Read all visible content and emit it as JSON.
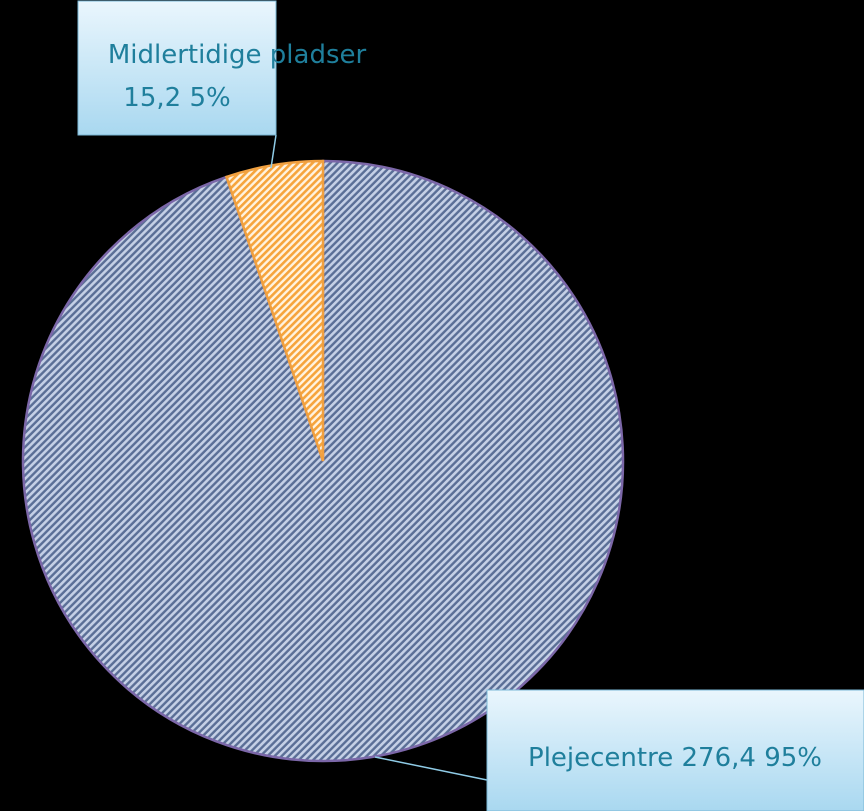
{
  "chart_data": {
    "type": "pie",
    "categories": [
      "Plejecentre",
      "Midlertidige pladser"
    ],
    "values": [
      276.4,
      15.2
    ],
    "value_labels": [
      "276,4",
      "15,2"
    ],
    "percents": [
      95,
      5
    ],
    "percent_labels": [
      "95%",
      "5%"
    ],
    "colors": [
      "#c5d0e6",
      "#f6a43c"
    ]
  }
}
